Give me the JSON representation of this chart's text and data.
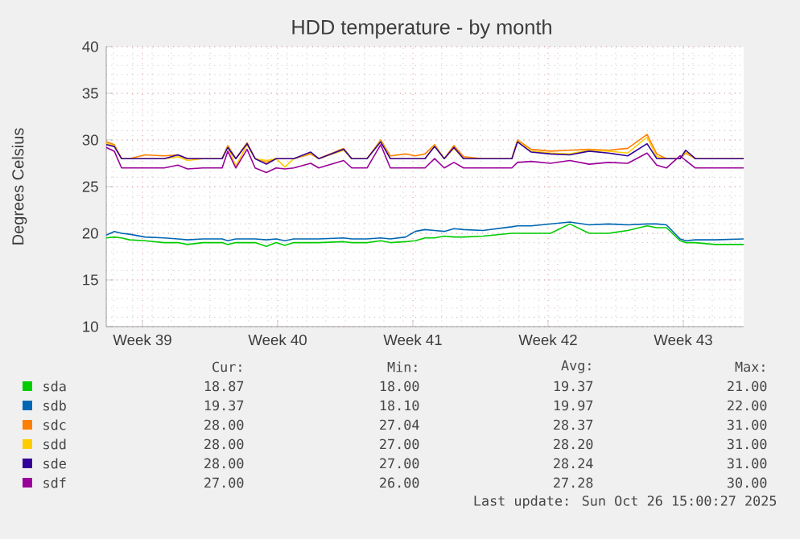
{
  "chart_data": {
    "type": "line",
    "title": "HDD temperature - by month",
    "ylabel": "Degrees Celsius",
    "xlim": [
      "2025-09-23T15:00",
      "2025-10-26T15:00"
    ],
    "ylim": [
      10,
      40
    ],
    "xticks": [
      {
        "value": "2025-09-25T12:00",
        "label": "Week 39"
      },
      {
        "value": "2025-10-02T12:00",
        "label": "Week 40"
      },
      {
        "value": "2025-10-09T12:00",
        "label": "Week 41"
      },
      {
        "value": "2025-10-16T12:00",
        "label": "Week 42"
      },
      {
        "value": "2025-10-23T12:00",
        "label": "Week 43"
      }
    ],
    "yticks": [
      10,
      15,
      20,
      25,
      30,
      35,
      40
    ],
    "grid": true,
    "legend": "bottom",
    "marker": "none",
    "line_style": "solid",
    "x": [
      "2025-09-23T15:00",
      "2025-09-24T01:00",
      "2025-09-24T10:00",
      "2025-09-24T20:00",
      "2025-09-25T15:00",
      "2025-09-26T15:00",
      "2025-09-27T08:00",
      "2025-09-27T20:00",
      "2025-09-28T15:00",
      "2025-09-29T15:00",
      "2025-09-29T22:00",
      "2025-09-30T08:00",
      "2025-09-30T22:00",
      "2025-10-01T08:00",
      "2025-10-01T22:00",
      "2025-10-02T10:00",
      "2025-10-02T21:00",
      "2025-10-03T08:00",
      "2025-10-04T05:00",
      "2025-10-04T15:00",
      "2025-10-05T22:00",
      "2025-10-06T08:00",
      "2025-10-07T03:00",
      "2025-10-07T20:00",
      "2025-10-08T08:00",
      "2025-10-09T03:00",
      "2025-10-09T15:00",
      "2025-10-10T03:00",
      "2025-10-10T15:00",
      "2025-10-11T03:00",
      "2025-10-11T15:00",
      "2025-10-12T03:00",
      "2025-10-13T03:00",
      "2025-10-14T15:00",
      "2025-10-14T22:00",
      "2025-10-15T15:00",
      "2025-10-16T15:00",
      "2025-10-17T15:00",
      "2025-10-18T15:00",
      "2025-10-19T15:00",
      "2025-10-20T15:00",
      "2025-10-21T15:00",
      "2025-10-22T03:00",
      "2025-10-22T15:00",
      "2025-10-23T08:00",
      "2025-10-23T15:00",
      "2025-10-24T03:00",
      "2025-10-25T03:00",
      "2025-10-26T15:00"
    ],
    "series": [
      {
        "name": "sda",
        "color": "#00cc00",
        "values": [
          19.5,
          19.6,
          19.5,
          19.3,
          19.2,
          19,
          19,
          18.8,
          19,
          19,
          18.8,
          19,
          19,
          19,
          18.6,
          19,
          18.7,
          19,
          19,
          19,
          19.1,
          19,
          19,
          19.2,
          19,
          19.1,
          19.2,
          19.5,
          19.5,
          19.7,
          19.6,
          19.6,
          19.7,
          20,
          20,
          20,
          20,
          21,
          20,
          20,
          20.3,
          20.8,
          20.6,
          20.6,
          19.2,
          19,
          19,
          18.8,
          18.8
        ]
      },
      {
        "name": "sdb",
        "color": "#0066b3",
        "values": [
          19.8,
          20.2,
          20,
          19.9,
          19.6,
          19.5,
          19.4,
          19.3,
          19.4,
          19.4,
          19.2,
          19.4,
          19.4,
          19.4,
          19.3,
          19.4,
          19.2,
          19.4,
          19.4,
          19.4,
          19.5,
          19.4,
          19.4,
          19.5,
          19.4,
          19.6,
          20.2,
          20.4,
          20.3,
          20.2,
          20.5,
          20.4,
          20.3,
          20.7,
          20.8,
          20.8,
          21,
          21.2,
          20.9,
          21,
          20.9,
          21,
          21,
          20.9,
          19.4,
          19.2,
          19.3,
          19.3,
          19.4
        ]
      },
      {
        "name": "sdc",
        "color": "#ff7f00",
        "values": [
          29.8,
          29.5,
          28,
          28,
          28.4,
          28.3,
          28.4,
          28,
          28,
          28,
          29.4,
          28,
          29.7,
          28,
          27.6,
          28,
          28,
          28,
          28.5,
          28,
          29.1,
          28,
          28,
          30,
          28.3,
          28.5,
          28.3,
          28.5,
          29.5,
          28,
          29.4,
          28.2,
          28,
          28,
          30,
          29,
          28.8,
          28.9,
          29,
          28.9,
          29.1,
          30.6,
          28.5,
          28,
          28,
          28.6,
          28,
          28,
          28
        ]
      },
      {
        "name": "sdd",
        "color": "#ffcc00",
        "values": [
          29.6,
          29.4,
          28,
          28,
          28,
          28,
          28.2,
          27.8,
          28,
          28,
          29.3,
          27.2,
          29.5,
          28,
          27.8,
          28,
          27.1,
          28,
          28.6,
          28,
          28.9,
          28,
          28,
          29.9,
          28,
          28,
          28,
          28,
          29.4,
          28,
          29.1,
          28,
          28,
          28,
          29.9,
          28.8,
          28.6,
          28.5,
          28.9,
          28.8,
          28.6,
          30.3,
          28.2,
          28,
          28,
          28.7,
          28,
          28,
          28
        ]
      },
      {
        "name": "sde",
        "color": "#330099",
        "values": [
          29.5,
          29.3,
          28,
          28,
          28,
          28,
          28.4,
          28,
          28,
          28,
          29.2,
          28,
          29.6,
          28,
          27.4,
          28,
          28,
          28,
          28.7,
          28,
          29,
          28,
          28,
          29.8,
          28,
          28,
          28,
          28,
          29.3,
          28,
          29.2,
          28,
          28,
          28,
          29.8,
          28.7,
          28.5,
          28.4,
          28.8,
          28.6,
          28.3,
          29.6,
          28,
          28,
          28,
          28.9,
          28,
          28,
          28
        ]
      },
      {
        "name": "sdf",
        "color": "#990099",
        "values": [
          29.2,
          28.8,
          27,
          27,
          27,
          27,
          27.3,
          26.9,
          27,
          27,
          28.8,
          27,
          29,
          27,
          26.5,
          27,
          26.9,
          27,
          27.5,
          27,
          27.8,
          27,
          27,
          29.5,
          27,
          27,
          27,
          27,
          28,
          27,
          27.6,
          27,
          27,
          27,
          27.6,
          27.7,
          27.5,
          27.8,
          27.4,
          27.6,
          27.5,
          28.6,
          27.3,
          27,
          28.3,
          27.8,
          27,
          27,
          27
        ]
      }
    ],
    "annotations": [
      "Cur:",
      "Min:",
      "Avg:",
      "Max:",
      "18.87",
      "18.00",
      "19.37",
      "21.00",
      "19.37",
      "18.10",
      "19.97",
      "22.00",
      "28.00",
      "27.04",
      "28.37",
      "31.00",
      "28.00",
      "27.00",
      "28.20",
      "31.00",
      "28.00",
      "27.00",
      "28.24",
      "31.00",
      "27.00",
      "26.00",
      "27.28",
      "30.00",
      "Last update: Sun Oct 26 15:00:27 2025"
    ]
  }
}
